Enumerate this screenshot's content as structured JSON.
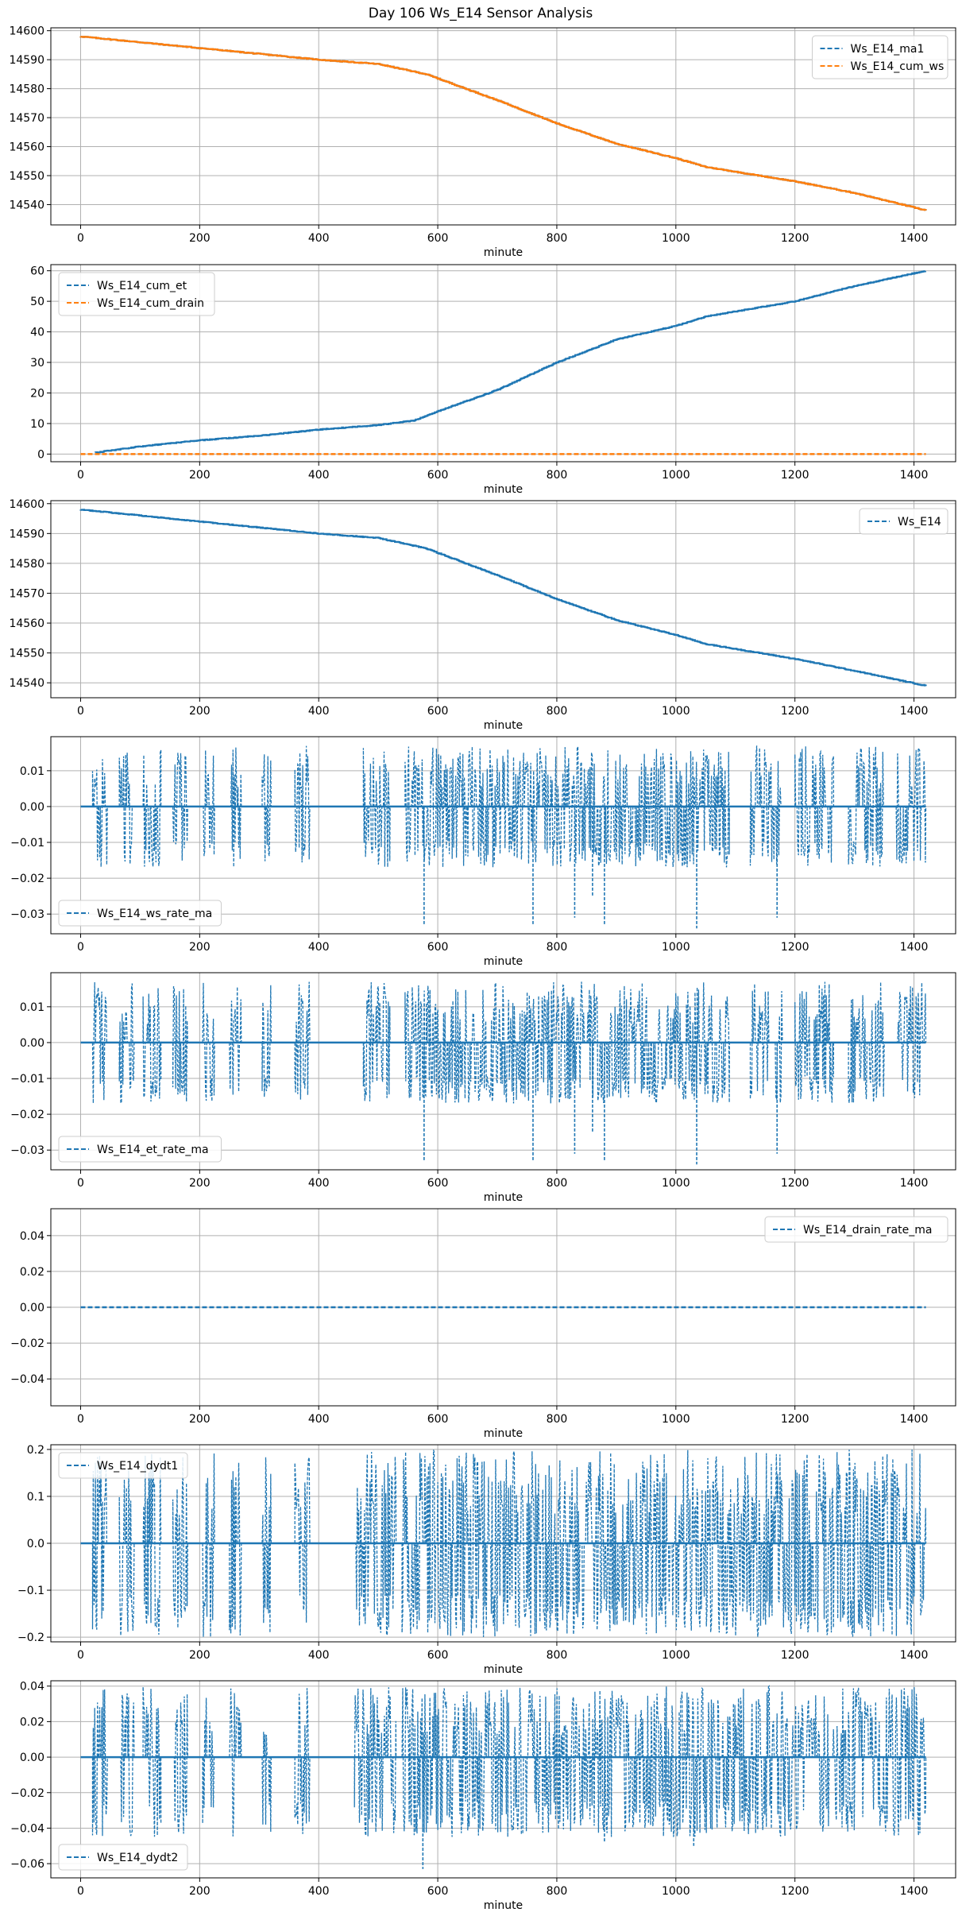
{
  "figure": {
    "title": "Day 106 Ws_E14 Sensor Analysis",
    "colors": {
      "blue": "#1f77b4",
      "orange": "#ff7f0e",
      "grid": "#b0b0b0"
    }
  },
  "chart_data": [
    {
      "type": "line",
      "xlabel": "minute",
      "xlim": [
        -50,
        1470
      ],
      "ylim": [
        14533,
        14601
      ],
      "xticks": [
        0,
        200,
        400,
        600,
        800,
        1000,
        1200,
        1400
      ],
      "yticks": [
        14540,
        14550,
        14560,
        14570,
        14580,
        14590,
        14600
      ],
      "legend": "top-right",
      "series": [
        {
          "name": "Ws_E14_ma1",
          "color": "#1f77b4",
          "style": "dashed",
          "kind": "drift",
          "anchors": [
            [
              0,
              14598
            ],
            [
              200,
              14594
            ],
            [
              400,
              14590
            ],
            [
              500,
              14588.5
            ],
            [
              580,
              14585
            ],
            [
              700,
              14576
            ],
            [
              800,
              14568
            ],
            [
              900,
              14561
            ],
            [
              1000,
              14556
            ],
            [
              1050,
              14553
            ],
            [
              1200,
              14548
            ],
            [
              1300,
              14544
            ],
            [
              1420,
              14538
            ]
          ]
        },
        {
          "name": "Ws_E14_cum_ws",
          "color": "#ff7f0e",
          "style": "dashed",
          "kind": "drift",
          "anchors": [
            [
              0,
              14598
            ],
            [
              200,
              14594
            ],
            [
              400,
              14590
            ],
            [
              500,
              14588.5
            ],
            [
              580,
              14585
            ],
            [
              700,
              14576
            ],
            [
              800,
              14568
            ],
            [
              900,
              14561
            ],
            [
              1000,
              14556
            ],
            [
              1050,
              14553
            ],
            [
              1200,
              14548
            ],
            [
              1300,
              14544
            ],
            [
              1420,
              14538
            ]
          ]
        }
      ]
    },
    {
      "type": "line",
      "xlabel": "minute",
      "xlim": [
        -50,
        1470
      ],
      "ylim": [
        -2.5,
        62
      ],
      "xticks": [
        0,
        200,
        400,
        600,
        800,
        1000,
        1200,
        1400
      ],
      "yticks": [
        0,
        10,
        20,
        30,
        40,
        50,
        60
      ],
      "legend": "top-left",
      "series": [
        {
          "name": "Ws_E14_cum_et",
          "color": "#1f77b4",
          "style": "dashed",
          "kind": "drift",
          "anchors": [
            [
              25,
              0.5
            ],
            [
              100,
              2.5
            ],
            [
              200,
              4.5
            ],
            [
              300,
              6
            ],
            [
              400,
              8
            ],
            [
              500,
              9.5
            ],
            [
              560,
              11
            ],
            [
              600,
              14
            ],
            [
              700,
              21
            ],
            [
              800,
              30
            ],
            [
              900,
              37.5
            ],
            [
              1000,
              42
            ],
            [
              1050,
              45
            ],
            [
              1200,
              50
            ],
            [
              1300,
              55
            ],
            [
              1420,
              60
            ]
          ]
        },
        {
          "name": "Ws_E14_cum_drain",
          "color": "#ff7f0e",
          "style": "dashed",
          "kind": "flat",
          "anchors": [
            [
              0,
              0
            ],
            [
              1420,
              0
            ]
          ]
        }
      ]
    },
    {
      "type": "line",
      "xlabel": "minute",
      "xlim": [
        -50,
        1470
      ],
      "ylim": [
        14535,
        14601
      ],
      "xticks": [
        0,
        200,
        400,
        600,
        800,
        1000,
        1200,
        1400
      ],
      "yticks": [
        14540,
        14550,
        14560,
        14570,
        14580,
        14590,
        14600
      ],
      "legend": "top-right",
      "series": [
        {
          "name": "Ws_E14",
          "color": "#1f77b4",
          "style": "dashed",
          "kind": "drift",
          "anchors": [
            [
              0,
              14598
            ],
            [
              200,
              14594
            ],
            [
              400,
              14590
            ],
            [
              500,
              14588.5
            ],
            [
              580,
              14585
            ],
            [
              700,
              14576
            ],
            [
              800,
              14568
            ],
            [
              900,
              14561
            ],
            [
              1000,
              14556
            ],
            [
              1050,
              14553
            ],
            [
              1200,
              14548
            ],
            [
              1300,
              14544
            ],
            [
              1420,
              14539
            ]
          ]
        }
      ]
    },
    {
      "type": "line",
      "xlabel": "minute",
      "xlim": [
        -50,
        1470
      ],
      "ylim": [
        -0.0355,
        0.0195
      ],
      "xticks": [
        0,
        200,
        400,
        600,
        800,
        1000,
        1200,
        1400
      ],
      "yticks": [
        -0.03,
        -0.02,
        -0.01,
        0.0,
        0.01
      ],
      "ytick_labels": [
        "−0.03",
        "−0.02",
        "−0.01",
        "0.00",
        "0.01"
      ],
      "legend": "bottom-left",
      "series": [
        {
          "name": "Ws_E14_ws_rate_ma",
          "color": "#1f77b4",
          "style": "dashed",
          "kind": "spikes",
          "range": [
            -0.017,
            0.017
          ],
          "extremes": [
            [
              577,
              -0.033
            ],
            [
              760,
              -0.033
            ],
            [
              830,
              -0.031
            ],
            [
              860,
              -0.025
            ],
            [
              880,
              -0.033
            ],
            [
              1035,
              -0.034
            ],
            [
              1170,
              -0.031
            ]
          ]
        }
      ]
    },
    {
      "type": "line",
      "xlabel": "minute",
      "xlim": [
        -50,
        1470
      ],
      "ylim": [
        -0.0355,
        0.0195
      ],
      "xticks": [
        0,
        200,
        400,
        600,
        800,
        1000,
        1200,
        1400
      ],
      "yticks": [
        -0.03,
        -0.02,
        -0.01,
        0.0,
        0.01
      ],
      "ytick_labels": [
        "−0.03",
        "−0.02",
        "−0.01",
        "0.00",
        "0.01"
      ],
      "legend": "bottom-left",
      "series": [
        {
          "name": "Ws_E14_et_rate_ma",
          "color": "#1f77b4",
          "style": "dashed",
          "kind": "spikes",
          "range": [
            -0.017,
            0.017
          ],
          "extremes": [
            [
              577,
              -0.033
            ],
            [
              760,
              -0.033
            ],
            [
              830,
              -0.031
            ],
            [
              860,
              -0.025
            ],
            [
              880,
              -0.033
            ],
            [
              1035,
              -0.034
            ],
            [
              1170,
              -0.031
            ]
          ]
        }
      ]
    },
    {
      "type": "line",
      "xlabel": "minute",
      "xlim": [
        -50,
        1470
      ],
      "ylim": [
        -0.055,
        0.055
      ],
      "xticks": [
        0,
        200,
        400,
        600,
        800,
        1000,
        1200,
        1400
      ],
      "yticks": [
        -0.04,
        -0.02,
        0.0,
        0.02,
        0.04
      ],
      "ytick_labels": [
        "−0.04",
        "−0.02",
        "0.00",
        "0.02",
        "0.04"
      ],
      "legend": "top-right",
      "series": [
        {
          "name": "Ws_E14_drain_rate_ma",
          "color": "#1f77b4",
          "style": "dashed",
          "kind": "flat",
          "anchors": [
            [
              0,
              0
            ],
            [
              1420,
              0
            ]
          ]
        }
      ]
    },
    {
      "type": "line",
      "xlabel": "minute",
      "xlim": [
        -50,
        1470
      ],
      "ylim": [
        -0.21,
        0.21
      ],
      "xticks": [
        0,
        200,
        400,
        600,
        800,
        1000,
        1200,
        1400
      ],
      "yticks": [
        -0.2,
        -0.1,
        0.0,
        0.1,
        0.2
      ],
      "ytick_labels": [
        "−0.2",
        "−0.1",
        "0.0",
        "0.1",
        "0.2"
      ],
      "legend": "top-left",
      "series": [
        {
          "name": "Ws_E14_dydt1",
          "color": "#1f77b4",
          "style": "dashed",
          "kind": "spikes",
          "range": [
            -0.2,
            0.2
          ],
          "extremes": []
        }
      ]
    },
    {
      "type": "line",
      "xlabel": "minute",
      "xlim": [
        -50,
        1470
      ],
      "ylim": [
        -0.068,
        0.043
      ],
      "xticks": [
        0,
        200,
        400,
        600,
        800,
        1000,
        1200,
        1400
      ],
      "yticks": [
        -0.06,
        -0.04,
        -0.02,
        0.0,
        0.02,
        0.04
      ],
      "ytick_labels": [
        "−0.06",
        "−0.04",
        "−0.02",
        "0.00",
        "0.02",
        "0.04"
      ],
      "legend": "bottom-left",
      "series": [
        {
          "name": "Ws_E14_dydt2",
          "color": "#1f77b4",
          "style": "dashed",
          "kind": "spikes",
          "range": [
            -0.045,
            0.04
          ],
          "extremes": [
            [
              575,
              -0.063
            ],
            [
              1030,
              -0.05
            ],
            [
              880,
              -0.048
            ]
          ]
        }
      ]
    }
  ]
}
